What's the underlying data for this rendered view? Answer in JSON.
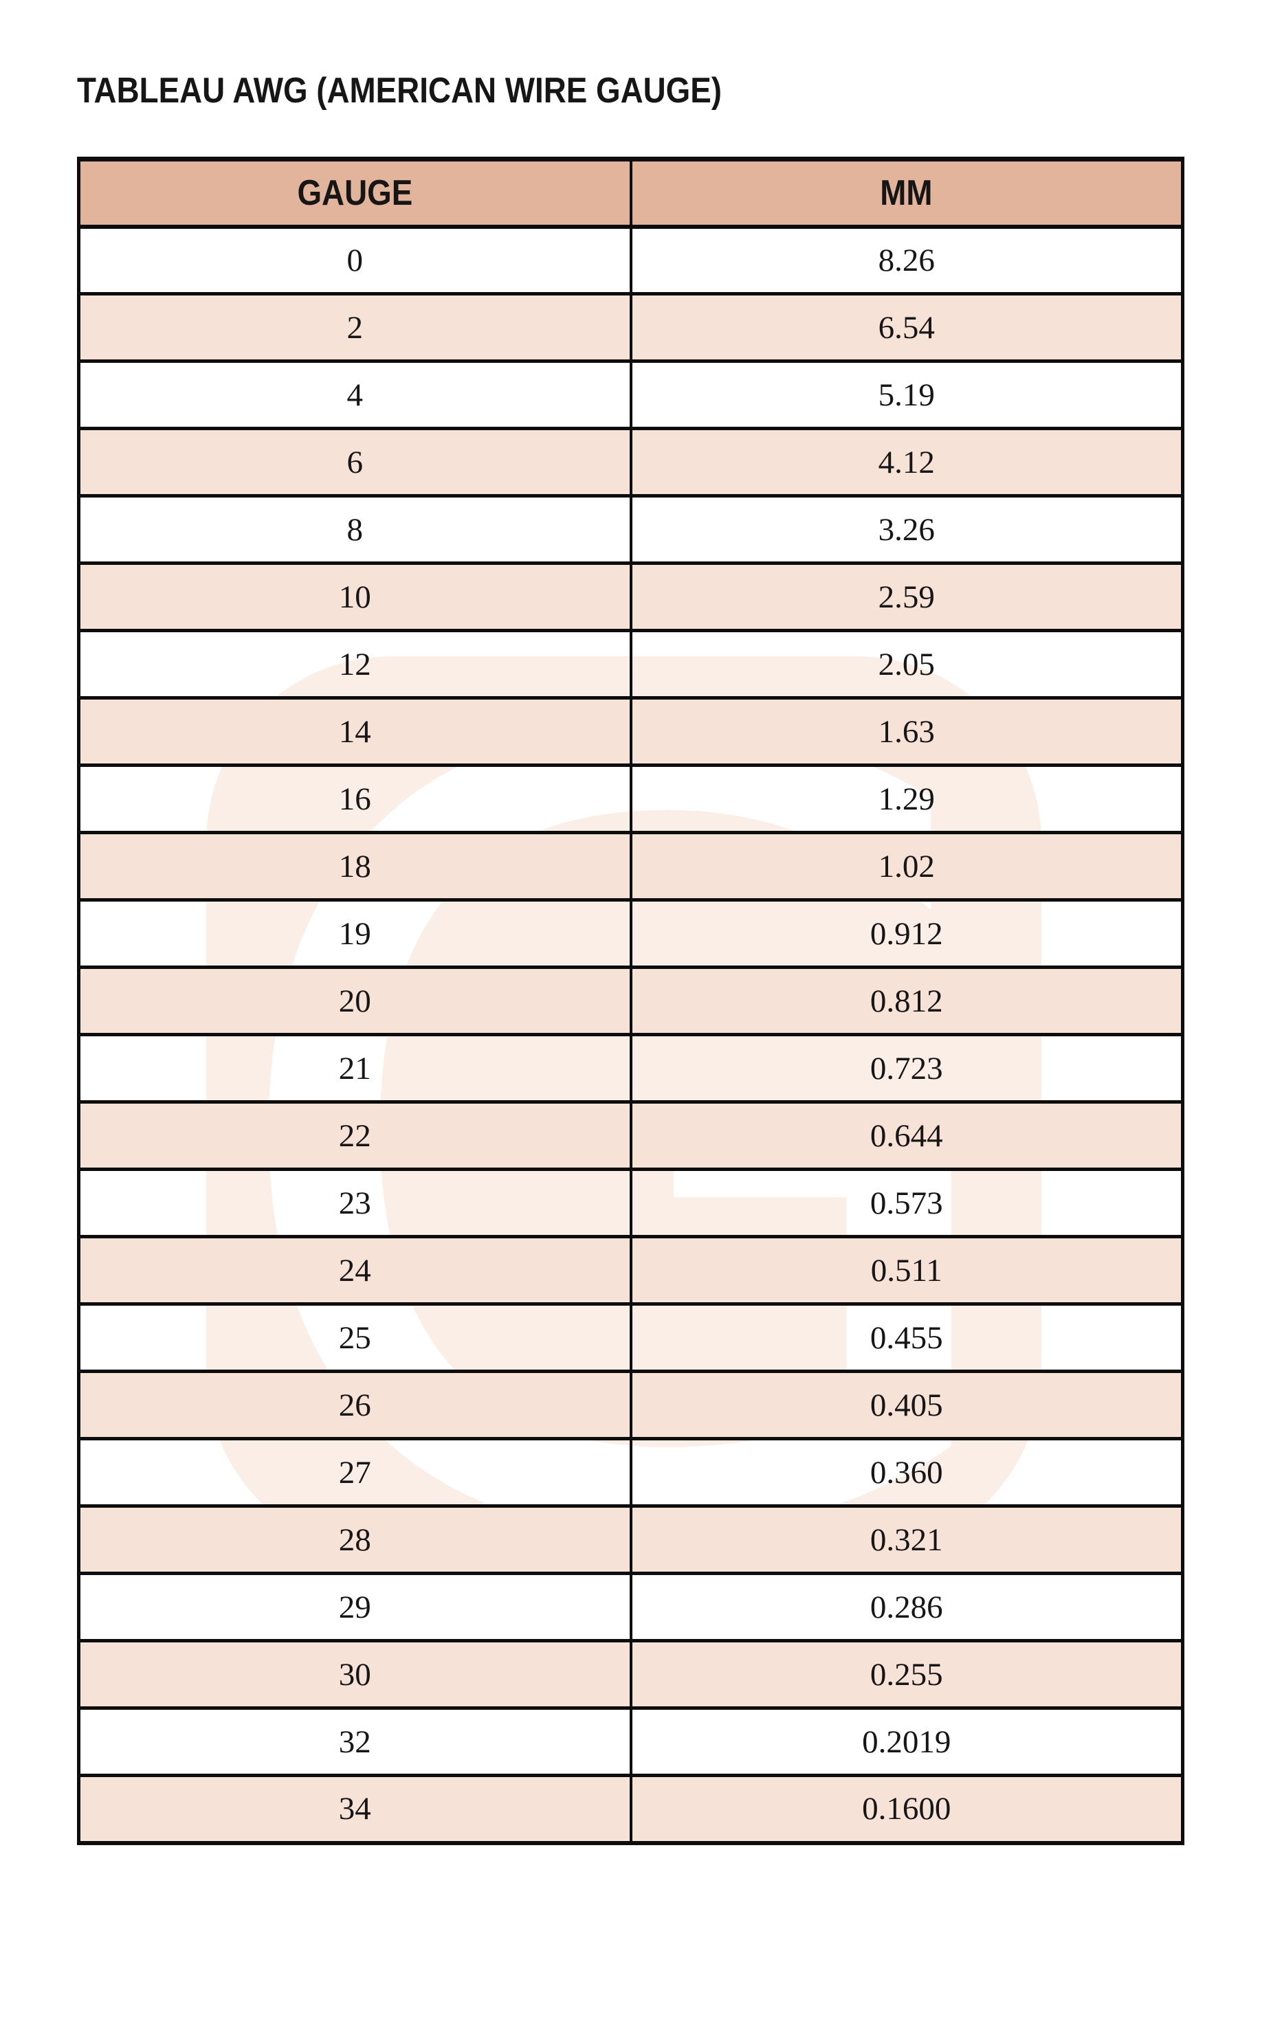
{
  "title": "TABLEAU AWG (AMERICAN WIRE GAUGE)",
  "watermark": {
    "letter": "G"
  },
  "table": {
    "columns": [
      "GAUGE",
      "MM"
    ],
    "rows": [
      [
        "0",
        "8.26"
      ],
      [
        "2",
        "6.54"
      ],
      [
        "4",
        "5.19"
      ],
      [
        "6",
        "4.12"
      ],
      [
        "8",
        "3.26"
      ],
      [
        "10",
        "2.59"
      ],
      [
        "12",
        "2.05"
      ],
      [
        "14",
        "1.63"
      ],
      [
        "16",
        "1.29"
      ],
      [
        "18",
        "1.02"
      ],
      [
        "19",
        "0.912"
      ],
      [
        "20",
        "0.812"
      ],
      [
        "21",
        "0.723"
      ],
      [
        "22",
        "0.644"
      ],
      [
        "23",
        "0.573"
      ],
      [
        "24",
        "0.511"
      ],
      [
        "25",
        "0.455"
      ],
      [
        "26",
        "0.405"
      ],
      [
        "27",
        "0.360"
      ],
      [
        "28",
        "0.321"
      ],
      [
        "29",
        "0.286"
      ],
      [
        "30",
        "0.255"
      ],
      [
        "32",
        "0.2019"
      ],
      [
        "34",
        "0.1600"
      ]
    ]
  },
  "colors": {
    "header_bg": "#e2b49c",
    "stripe_bg": "#f6e2d6",
    "watermark_bg": "#faeee7",
    "border_color": "#0d0d0d",
    "text_color": "#161616",
    "page_bg": "#ffffff"
  }
}
